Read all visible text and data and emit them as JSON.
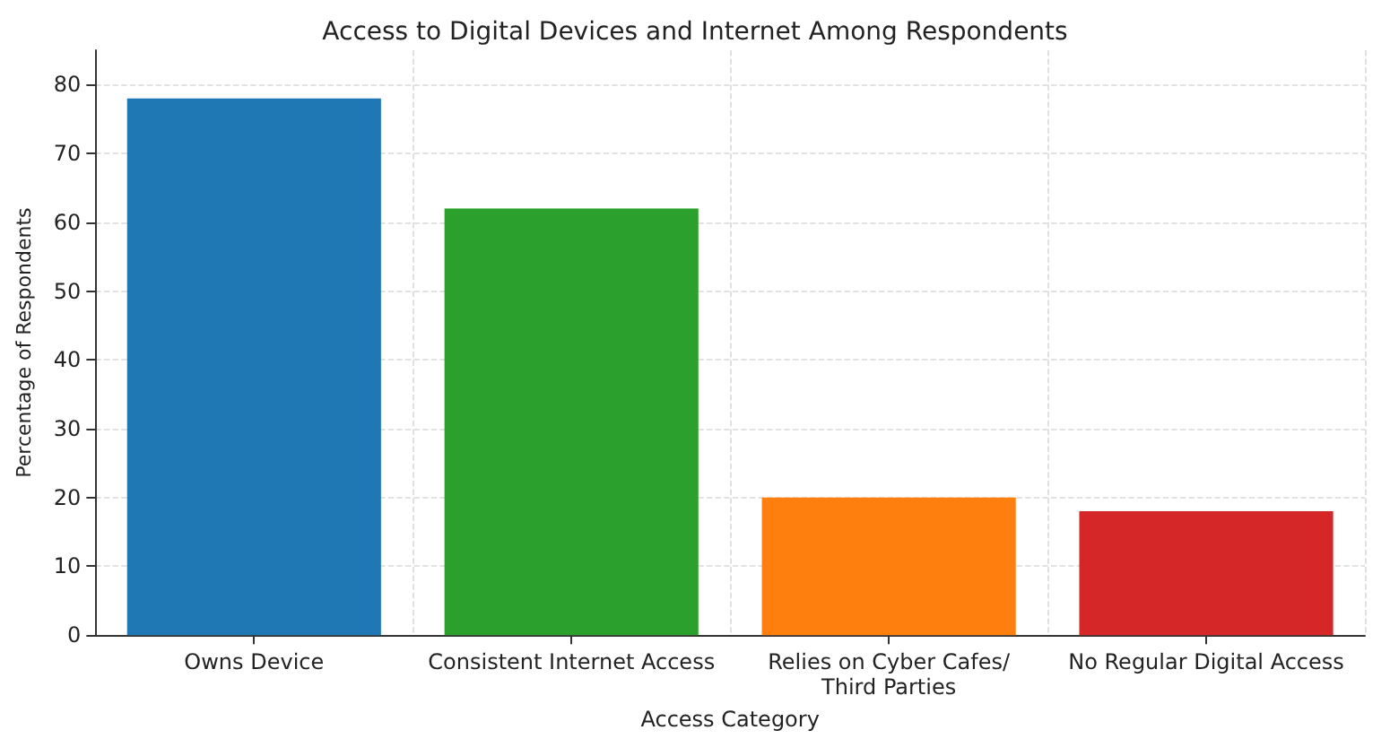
{
  "chart_data": {
    "type": "bar",
    "title": "Access to Digital Devices and Internet Among Respondents",
    "xlabel": "Access Category",
    "ylabel": "Percentage of Respondents",
    "categories": [
      "Owns Device",
      "Consistent Internet Access",
      "Relies on Cyber Cafes/Third Parties",
      "No Regular Digital Access"
    ],
    "values": [
      78,
      62,
      20,
      18
    ],
    "colors": [
      "#1f77b4",
      "#2ca02c",
      "#ff7f0e",
      "#d62728"
    ],
    "ylim": [
      0,
      85
    ],
    "yticks": [
      0,
      10,
      20,
      30,
      40,
      50,
      60,
      70,
      80
    ],
    "grid": true
  }
}
